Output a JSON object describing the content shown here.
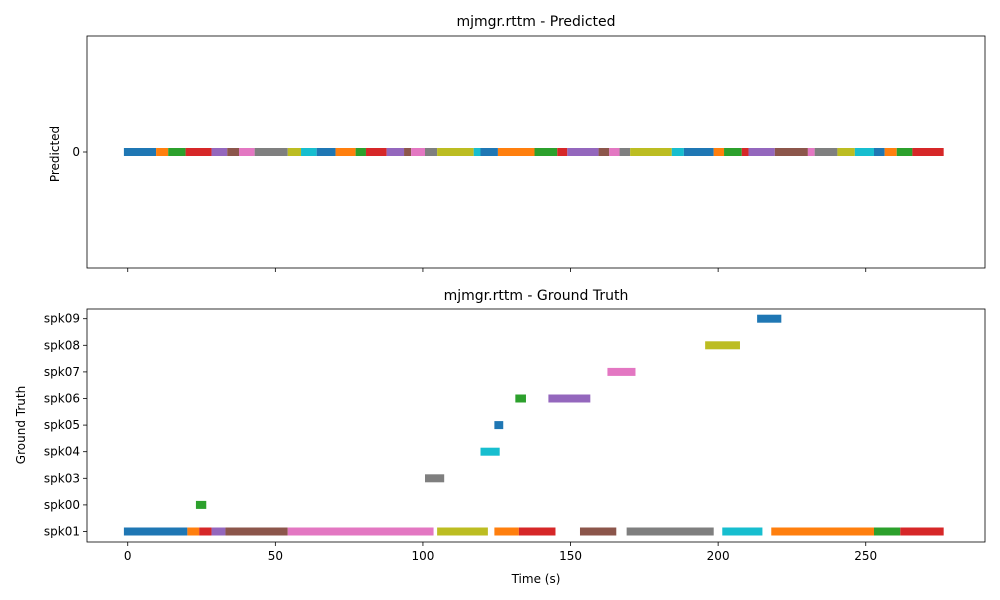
{
  "chart_data": [
    {
      "type": "timeline",
      "title": "mjmgr.rttm - Predicted",
      "ylabel": "Predicted",
      "xlabel": "",
      "xlim": [
        -13.8,
        290.4
      ],
      "x_ticks": [
        0,
        50,
        100,
        150,
        200,
        250
      ],
      "show_x_tick_labels": false,
      "y_categories": [
        "0"
      ],
      "segments": [
        {
          "row": "0",
          "start": -1.3,
          "end": 9.6,
          "color": "#1f77b4"
        },
        {
          "row": "0",
          "start": 9.6,
          "end": 13.7,
          "color": "#ff7f0e"
        },
        {
          "row": "0",
          "start": 13.7,
          "end": 19.6,
          "color": "#2ca02c"
        },
        {
          "row": "0",
          "start": 19.6,
          "end": 28.4,
          "color": "#d62728"
        },
        {
          "row": "0",
          "start": 28.4,
          "end": 33.7,
          "color": "#9467bd"
        },
        {
          "row": "0",
          "start": 33.7,
          "end": 37.7,
          "color": "#8c564b"
        },
        {
          "row": "0",
          "start": 37.7,
          "end": 43.0,
          "color": "#e377c2"
        },
        {
          "row": "0",
          "start": 43.0,
          "end": 54.2,
          "color": "#7f7f7f"
        },
        {
          "row": "0",
          "start": 54.2,
          "end": 58.7,
          "color": "#bcbd22"
        },
        {
          "row": "0",
          "start": 58.7,
          "end": 64.0,
          "color": "#17becf"
        },
        {
          "row": "0",
          "start": 64.0,
          "end": 70.4,
          "color": "#1f77b4"
        },
        {
          "row": "0",
          "start": 70.4,
          "end": 77.2,
          "color": "#ff7f0e"
        },
        {
          "row": "0",
          "start": 77.2,
          "end": 80.7,
          "color": "#2ca02c"
        },
        {
          "row": "0",
          "start": 80.7,
          "end": 87.7,
          "color": "#d62728"
        },
        {
          "row": "0",
          "start": 87.7,
          "end": 93.6,
          "color": "#9467bd"
        },
        {
          "row": "0",
          "start": 93.6,
          "end": 96.0,
          "color": "#8c564b"
        },
        {
          "row": "0",
          "start": 96.0,
          "end": 100.7,
          "color": "#e377c2"
        },
        {
          "row": "0",
          "start": 100.7,
          "end": 104.8,
          "color": "#7f7f7f"
        },
        {
          "row": "0",
          "start": 104.8,
          "end": 117.2,
          "color": "#bcbd22"
        },
        {
          "row": "0",
          "start": 117.2,
          "end": 119.5,
          "color": "#17becf"
        },
        {
          "row": "0",
          "start": 119.5,
          "end": 125.4,
          "color": "#1f77b4"
        },
        {
          "row": "0",
          "start": 125.4,
          "end": 137.8,
          "color": "#ff7f0e"
        },
        {
          "row": "0",
          "start": 137.8,
          "end": 145.5,
          "color": "#2ca02c"
        },
        {
          "row": "0",
          "start": 145.5,
          "end": 148.9,
          "color": "#d62728"
        },
        {
          "row": "0",
          "start": 148.9,
          "end": 159.5,
          "color": "#9467bd"
        },
        {
          "row": "0",
          "start": 159.5,
          "end": 163.1,
          "color": "#8c564b"
        },
        {
          "row": "0",
          "start": 163.1,
          "end": 166.6,
          "color": "#e377c2"
        },
        {
          "row": "0",
          "start": 166.6,
          "end": 170.2,
          "color": "#7f7f7f"
        },
        {
          "row": "0",
          "start": 170.2,
          "end": 184.3,
          "color": "#bcbd22"
        },
        {
          "row": "0",
          "start": 184.3,
          "end": 188.4,
          "color": "#17becf"
        },
        {
          "row": "0",
          "start": 188.4,
          "end": 198.5,
          "color": "#1f77b4"
        },
        {
          "row": "0",
          "start": 198.5,
          "end": 202.0,
          "color": "#ff7f0e"
        },
        {
          "row": "0",
          "start": 202.0,
          "end": 208.0,
          "color": "#2ca02c"
        },
        {
          "row": "0",
          "start": 208.0,
          "end": 210.3,
          "color": "#d62728"
        },
        {
          "row": "0",
          "start": 210.3,
          "end": 219.2,
          "color": "#9467bd"
        },
        {
          "row": "0",
          "start": 219.2,
          "end": 230.4,
          "color": "#8c564b"
        },
        {
          "row": "0",
          "start": 230.4,
          "end": 232.7,
          "color": "#e377c2"
        },
        {
          "row": "0",
          "start": 232.7,
          "end": 240.4,
          "color": "#7f7f7f"
        },
        {
          "row": "0",
          "start": 240.4,
          "end": 246.3,
          "color": "#bcbd22"
        },
        {
          "row": "0",
          "start": 246.3,
          "end": 252.8,
          "color": "#17becf"
        },
        {
          "row": "0",
          "start": 252.8,
          "end": 256.4,
          "color": "#1f77b4"
        },
        {
          "row": "0",
          "start": 256.4,
          "end": 260.5,
          "color": "#ff7f0e"
        },
        {
          "row": "0",
          "start": 260.5,
          "end": 265.8,
          "color": "#2ca02c"
        },
        {
          "row": "0",
          "start": 265.8,
          "end": 276.4,
          "color": "#d62728"
        }
      ]
    },
    {
      "type": "timeline",
      "title": "mjmgr.rttm - Ground Truth",
      "ylabel": "Ground Truth",
      "xlabel": "Time (s)",
      "xlim": [
        -13.8,
        290.4
      ],
      "x_ticks": [
        0,
        50,
        100,
        150,
        200,
        250
      ],
      "show_x_tick_labels": true,
      "y_categories": [
        "spk01",
        "spk00",
        "spk03",
        "spk04",
        "spk05",
        "spk06",
        "spk07",
        "spk08",
        "spk09"
      ],
      "segments": [
        {
          "row": "spk01",
          "start": -1.3,
          "end": 20.2,
          "color": "#1f77b4"
        },
        {
          "row": "spk01",
          "start": 20.2,
          "end": 24.2,
          "color": "#ff7f0e"
        },
        {
          "row": "spk01",
          "start": 24.2,
          "end": 28.4,
          "color": "#d62728"
        },
        {
          "row": "spk01",
          "start": 28.4,
          "end": 33.1,
          "color": "#9467bd"
        },
        {
          "row": "spk01",
          "start": 33.1,
          "end": 54.2,
          "color": "#8c564b"
        },
        {
          "row": "spk01",
          "start": 54.2,
          "end": 103.6,
          "color": "#e377c2"
        },
        {
          "row": "spk01",
          "start": 104.8,
          "end": 122.0,
          "color": "#bcbd22"
        },
        {
          "row": "spk01",
          "start": 124.2,
          "end": 132.5,
          "color": "#ff7f0e"
        },
        {
          "row": "spk01",
          "start": 132.5,
          "end": 144.9,
          "color": "#d62728"
        },
        {
          "row": "spk01",
          "start": 153.2,
          "end": 165.5,
          "color": "#8c564b"
        },
        {
          "row": "spk01",
          "start": 169.0,
          "end": 198.5,
          "color": "#7f7f7f"
        },
        {
          "row": "spk01",
          "start": 201.4,
          "end": 215.0,
          "color": "#17becf"
        },
        {
          "row": "spk01",
          "start": 218.0,
          "end": 252.8,
          "color": "#ff7f0e"
        },
        {
          "row": "spk01",
          "start": 252.8,
          "end": 261.7,
          "color": "#2ca02c"
        },
        {
          "row": "spk01",
          "start": 261.7,
          "end": 276.4,
          "color": "#d62728"
        },
        {
          "row": "spk00",
          "start": 23.1,
          "end": 26.6,
          "color": "#2ca02c"
        },
        {
          "row": "spk03",
          "start": 100.7,
          "end": 107.2,
          "color": "#7f7f7f"
        },
        {
          "row": "spk04",
          "start": 119.5,
          "end": 126.0,
          "color": "#17becf"
        },
        {
          "row": "spk05",
          "start": 124.2,
          "end": 127.2,
          "color": "#1f77b4"
        },
        {
          "row": "spk06",
          "start": 131.3,
          "end": 134.9,
          "color": "#2ca02c"
        },
        {
          "row": "spk06",
          "start": 142.5,
          "end": 156.7,
          "color": "#9467bd"
        },
        {
          "row": "spk07",
          "start": 162.5,
          "end": 172.0,
          "color": "#e377c2"
        },
        {
          "row": "spk08",
          "start": 195.6,
          "end": 207.4,
          "color": "#bcbd22"
        },
        {
          "row": "spk09",
          "start": 213.2,
          "end": 221.4,
          "color": "#1f77b4"
        }
      ]
    }
  ]
}
